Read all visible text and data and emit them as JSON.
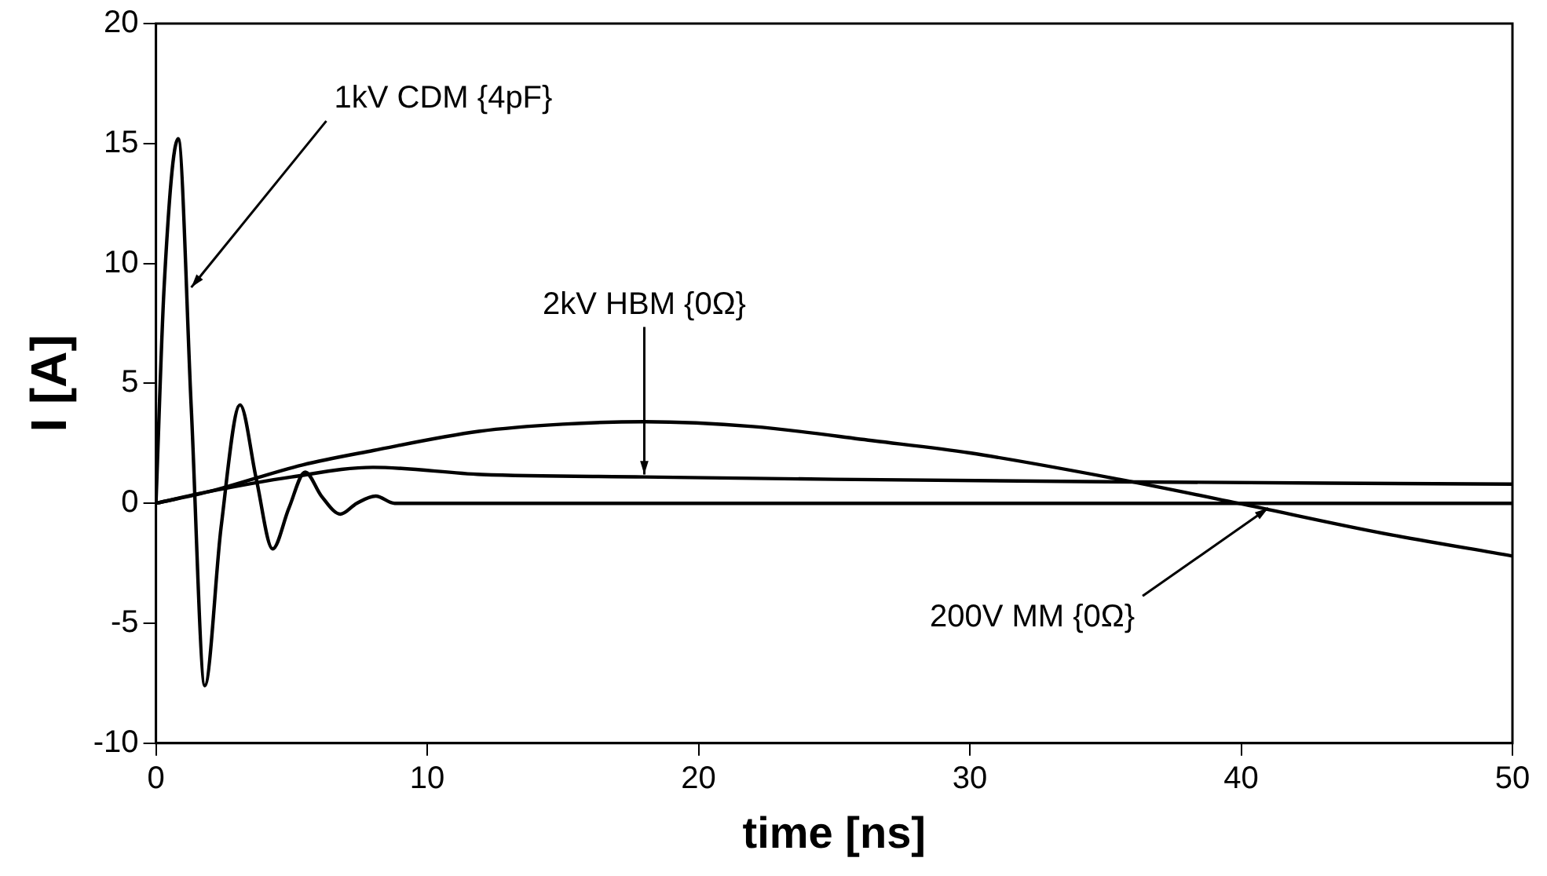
{
  "chart_data": {
    "type": "line",
    "xlabel": "time [ns]",
    "ylabel": "I [A]",
    "xlim": [
      0,
      50
    ],
    "xticks": [
      0,
      10,
      20,
      30,
      40,
      50
    ],
    "ylim": [
      -10,
      20
    ],
    "yticks": [
      -10,
      -5,
      0,
      5,
      10,
      15,
      20
    ],
    "grid": false,
    "legend": false,
    "marker": "none",
    "line_style": "solid",
    "series": [
      {
        "color": "#000000",
        "x": [
          0,
          0.3,
          0.82,
          1.3,
          1.8,
          2.4,
          3.1,
          3.7,
          4.3,
          4.9,
          5.5,
          6.1,
          6.8,
          7.4,
          8.1,
          8.8,
          9.5,
          12,
          20,
          50
        ],
        "values": [
          0,
          9,
          15.2,
          4,
          -7.6,
          -1,
          4.1,
          1,
          -1.9,
          -0.2,
          1.3,
          0.3,
          -0.45,
          0,
          0.3,
          0,
          0,
          0,
          0,
          0
        ]
      },
      {
        "color": "#000000",
        "x": [
          0,
          2,
          5,
          8,
          12,
          18,
          25,
          35,
          50
        ],
        "values": [
          0,
          0.5,
          1.1,
          1.5,
          1.2,
          1.1,
          1,
          0.9,
          0.8
        ]
      },
      {
        "color": "#000000",
        "x": [
          0,
          2,
          5.4,
          8,
          11.9,
          15,
          18,
          22,
          26.5,
          30,
          35.5,
          39.9,
          45,
          50
        ],
        "values": [
          0,
          0.5,
          1.6,
          2.2,
          3,
          3.3,
          3.4,
          3.2,
          2.6,
          2.1,
          1,
          0,
          -1.2,
          -2.2
        ]
      }
    ],
    "annotations": [
      {
        "text": "1kV CDM {4pF}",
        "x": 1.3,
        "y": 9
      },
      {
        "text": "2kV HBM {0Ω}",
        "x": 18,
        "y": 1.2
      },
      {
        "text": "200V MM {0Ω}",
        "x": 41,
        "y": -0.2
      }
    ]
  }
}
